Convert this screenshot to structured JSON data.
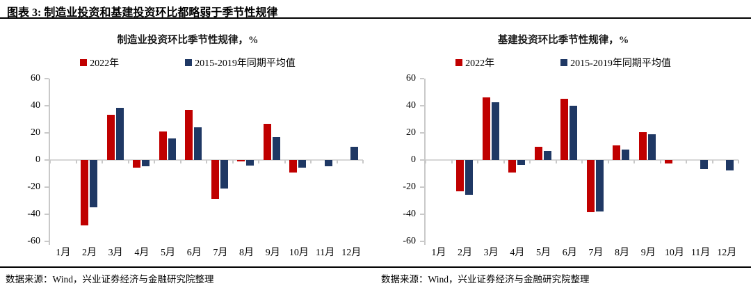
{
  "header": {
    "title": "图表 3: 制造业投资和基建投资环比都略弱于季节性规律"
  },
  "footer": {
    "left": "数据来源：Wind，兴业证券经济与金融研究院整理",
    "right": "数据来源：Wind，兴业证券经济与金融研究院整理"
  },
  "colors": {
    "series_2022": "#C00000",
    "series_avg": "#1F3864",
    "axis_gray": "#C9C9C9",
    "zero_line_gray": "#D6D6D6"
  },
  "chart_data": [
    {
      "type": "bar",
      "title": "制造业投资环比季节性规律，%",
      "categories": [
        "1月",
        "2月",
        "3月",
        "4月",
        "5月",
        "6月",
        "7月",
        "8月",
        "9月",
        "10月",
        "11月",
        "12月"
      ],
      "series": [
        {
          "name": "2022年",
          "color": "#C00000",
          "values": [
            null,
            -48,
            33.5,
            -5.5,
            21,
            37,
            -28.5,
            -1,
            26.5,
            -9,
            null,
            null
          ]
        },
        {
          "name": "2015-2019年同期平均值",
          "color": "#1F3864",
          "values": [
            null,
            -35,
            38.5,
            -4.5,
            16,
            24,
            -21,
            -4,
            17,
            -5.5,
            -4.5,
            9.5
          ]
        }
      ],
      "xlabel": "",
      "ylabel": "%",
      "ylim": [
        -60,
        60
      ],
      "yticks": [
        60,
        40,
        20,
        0,
        -20,
        -40,
        -60
      ],
      "grid": false,
      "legend_position": "top"
    },
    {
      "type": "bar",
      "title": "基建投资环比季节性规律，%",
      "categories": [
        "1月",
        "2月",
        "3月",
        "4月",
        "5月",
        "6月",
        "7月",
        "8月",
        "9月",
        "10月",
        "11月",
        "12月"
      ],
      "series": [
        {
          "name": "2022年",
          "color": "#C00000",
          "values": [
            null,
            -23,
            46,
            -9,
            10,
            45,
            -38.5,
            11,
            20.5,
            -2.5,
            null,
            null
          ]
        },
        {
          "name": "2015-2019年同期平均值",
          "color": "#1F3864",
          "values": [
            null,
            -25.5,
            42.5,
            -3.5,
            6.5,
            40,
            -38,
            7.5,
            19,
            null,
            -6.5,
            -7.5
          ]
        }
      ],
      "xlabel": "",
      "ylabel": "%",
      "ylim": [
        -60,
        60
      ],
      "yticks": [
        60,
        40,
        20,
        0,
        -20,
        -40,
        -60
      ],
      "grid": false,
      "legend_position": "top"
    }
  ]
}
